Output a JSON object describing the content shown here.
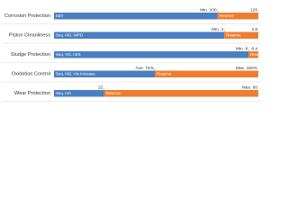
{
  "chart_data": {
    "type": "bar",
    "categories": [
      "Corrosion Protection",
      "Piston Cleanliness",
      "Sludge Protection",
      "Oxidation Control",
      "Wear Protection"
    ],
    "tests": [
      "EBT",
      "Seq. IIIG: WPD",
      "Seq. VG: AES",
      "Seq. IIIG: Vis Increase",
      "Seq. IVA"
    ],
    "values": [
      100,
      4,
      8,
      74,
      22
    ],
    "value_labels": [
      "Min. 100",
      "Min. 4",
      "Min. 8",
      "Ave. 74%",
      "22"
    ],
    "limits": [
      125,
      4.8,
      8.4,
      150,
      90
    ],
    "limit_labels": [
      "125",
      "4.8",
      "8.4",
      "Max. 150%",
      "Max. 90"
    ],
    "reserve_label": "Reserve",
    "color": "#4a7fc1",
    "reserve_color": "#ed7d31"
  }
}
